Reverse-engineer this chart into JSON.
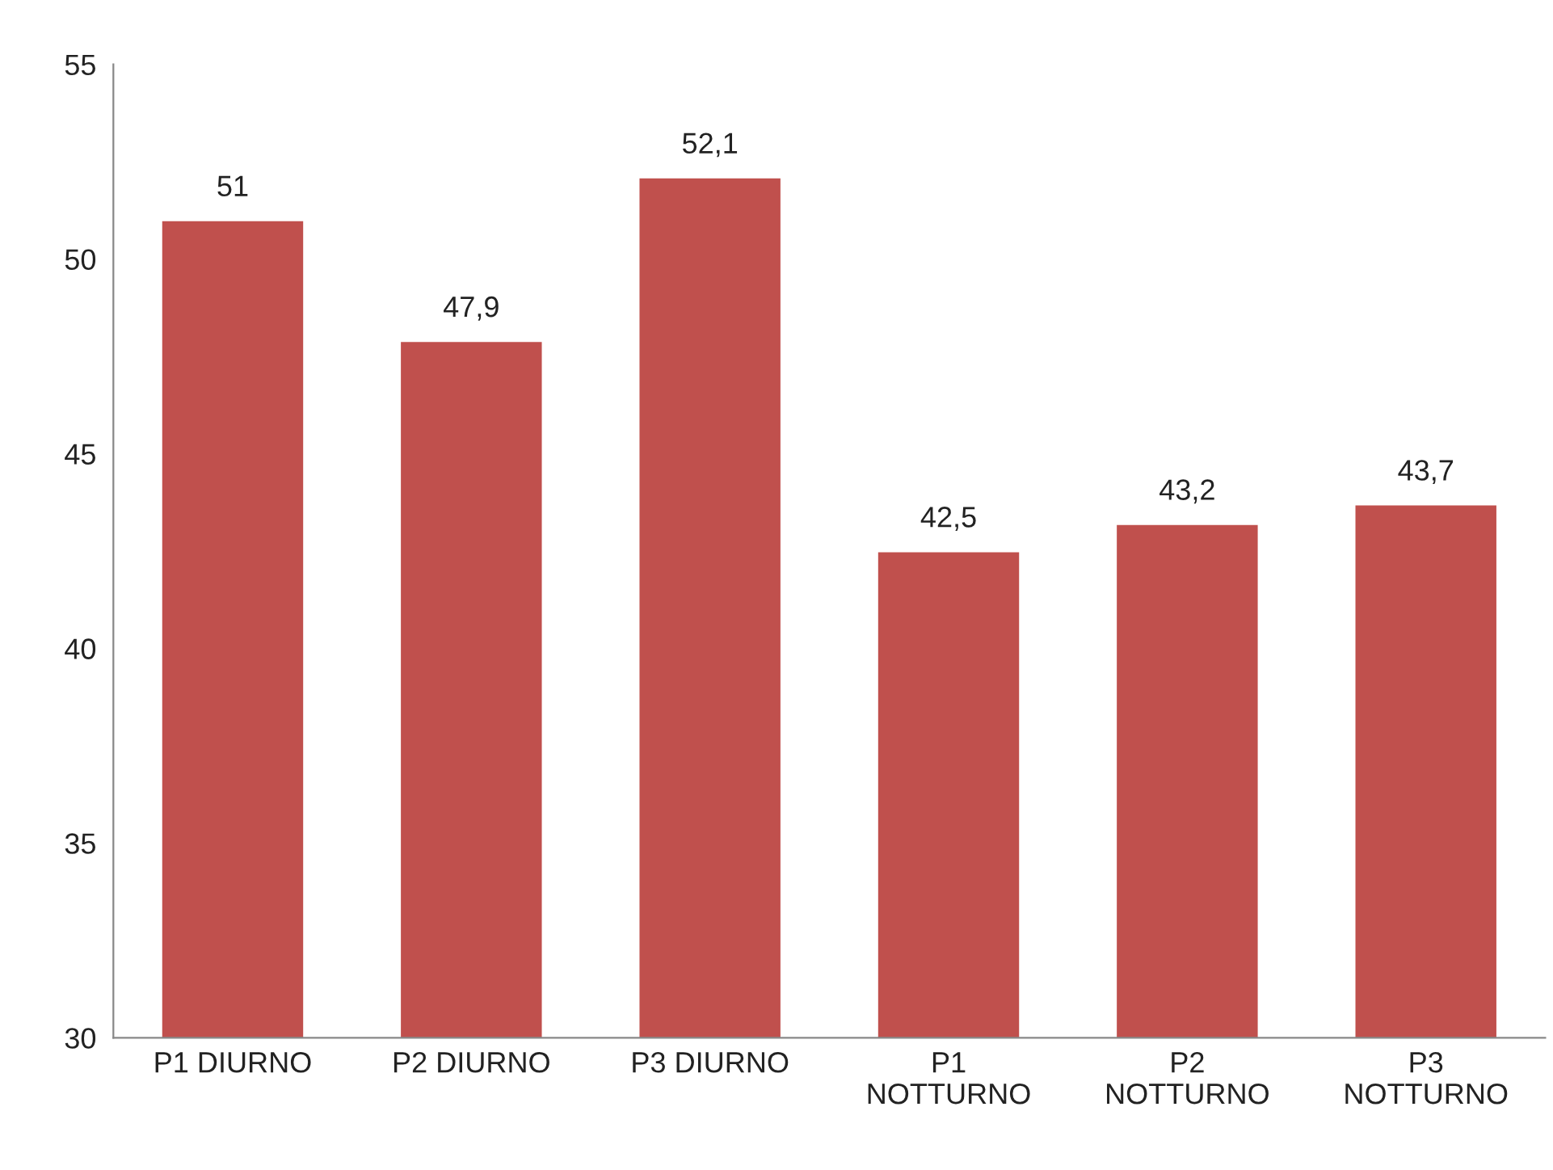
{
  "chart_data": {
    "type": "bar",
    "categories": [
      "P1 DIURNO",
      "P2 DIURNO",
      "P3 DIURNO",
      "P1\nNOTTURNO",
      "P2\nNOTTURNO",
      "P3\nNOTTURNO"
    ],
    "values": [
      51,
      47.9,
      52.1,
      42.5,
      43.2,
      43.7
    ],
    "value_labels": [
      "51",
      "47,9",
      "52,1",
      "42,5",
      "43,2",
      "43,7"
    ],
    "color": "#c0504d",
    "ylim": [
      30,
      55
    ],
    "yticks": [
      30,
      35,
      40,
      45,
      50,
      55
    ],
    "grid": false
  }
}
